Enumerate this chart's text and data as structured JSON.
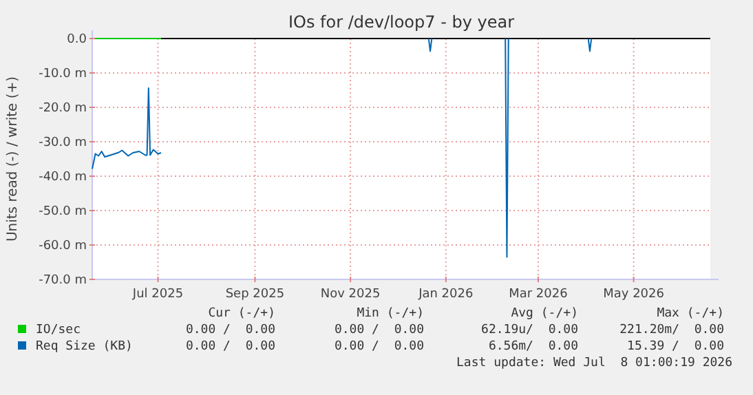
{
  "chart_data": {
    "type": "line",
    "title": "IOs for /dev/loop7 - by year",
    "ylabel": "Units read (-) / write (+)",
    "xlim": [
      "2025-05-20",
      "2026-06-19"
    ],
    "xticks": [
      {
        "value": "2025-07-01",
        "label": "Jul 2025"
      },
      {
        "value": "2025-09-01",
        "label": "Sep 2025"
      },
      {
        "value": "2025-11-01",
        "label": "Nov 2025"
      },
      {
        "value": "2026-01-01",
        "label": "Jan 2026"
      },
      {
        "value": "2026-03-01",
        "label": "Mar 2026"
      },
      {
        "value": "2026-05-01",
        "label": "May 2026"
      }
    ],
    "ylim": [
      -70,
      0
    ],
    "yticks": [
      {
        "value": 0,
        "label": "0.0"
      },
      {
        "value": -10,
        "label": "-10.0 m"
      },
      {
        "value": -20,
        "label": "-20.0 m"
      },
      {
        "value": -30,
        "label": "-30.0 m"
      },
      {
        "value": -40,
        "label": "-40.0 m"
      },
      {
        "value": -50,
        "label": "-50.0 m"
      },
      {
        "value": -60,
        "label": "-60.0 m"
      },
      {
        "value": -70,
        "label": "-70.0 m"
      }
    ],
    "grid": true,
    "legend": "bottom",
    "ref_lines": [
      {
        "axis": "y",
        "value": 0,
        "color": "#000000"
      }
    ],
    "series": [
      {
        "name": "IO/sec",
        "color": "#00cc00",
        "x": [
          "2025-05-20",
          "2025-07-03"
        ],
        "values": [
          0,
          0
        ]
      },
      {
        "name": "Req Size (KB)",
        "color": "#0066b3",
        "x": [
          "2025-05-20",
          "2025-05-22",
          "2025-05-24",
          "2025-05-26",
          "2025-05-28",
          "2025-06-02",
          "2025-06-06",
          "2025-06-08",
          "2025-06-12",
          "2025-06-15",
          "2025-06-19",
          "2025-06-23",
          "2025-06-24",
          "2025-06-25",
          "2025-06-26",
          "2025-06-28",
          "2025-07-01",
          "2025-07-03",
          "2025-07-04",
          "2025-12-21",
          "2025-12-22",
          "2025-12-23",
          "2026-01-15",
          "2026-02-08",
          "2026-02-09",
          "2026-02-10",
          "2026-03-01",
          "2026-04-02",
          "2026-04-03",
          "2026-04-04"
        ],
        "values": [
          -37.9,
          -33.5,
          -34.1,
          -32.8,
          -34.4,
          -33.7,
          -33.1,
          -32.5,
          -34.1,
          -33.2,
          -32.8,
          -33.9,
          -33.9,
          -14.4,
          -33.9,
          -32.3,
          -33.5,
          -33.2,
          null,
          0,
          -3.7,
          0,
          null,
          0,
          -63.5,
          0,
          null,
          0,
          -3.7,
          0
        ]
      }
    ],
    "annotations": [
      "Cur (-/+)",
      "Min (-/+)",
      "Avg (-/+)",
      "Max (-/+)",
      "0.00 /  0.00",
      "0.00 /  0.00",
      "62.19u/  0.00",
      "221.20m/  0.00",
      "0.00 /  0.00",
      "0.00 /  0.00",
      "6.56m/  0.00",
      "15.39 /  0.00",
      "Last update: Wed Jul  8 01:00:19 2026"
    ]
  }
}
